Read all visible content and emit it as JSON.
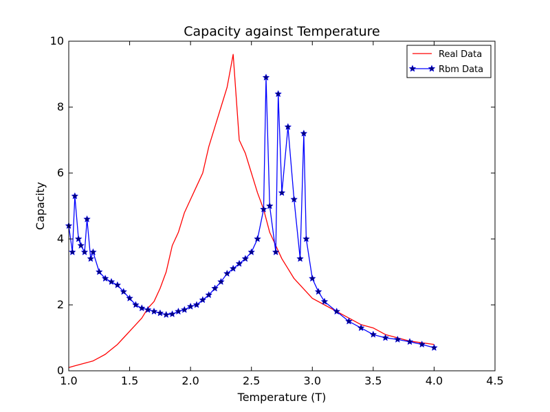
{
  "chart_data": {
    "type": "line",
    "title": "Capacity against Temperature",
    "xlabel": "Temperature (T)",
    "ylabel": "Capacity",
    "xlim": [
      1.0,
      4.5
    ],
    "ylim": [
      0,
      10
    ],
    "xticks": [
      "1.0",
      "1.5",
      "2.0",
      "2.5",
      "3.0",
      "3.5",
      "4.0",
      "4.5"
    ],
    "yticks": [
      "0",
      "2",
      "4",
      "6",
      "8",
      "10"
    ],
    "grid": false,
    "legend_position": "top-right",
    "series": [
      {
        "name": "Real Data",
        "color": "#ff0000",
        "marker": "none",
        "x": [
          1.0,
          1.05,
          1.1,
          1.15,
          1.2,
          1.25,
          1.3,
          1.35,
          1.4,
          1.45,
          1.5,
          1.55,
          1.6,
          1.65,
          1.7,
          1.75,
          1.8,
          1.85,
          1.9,
          1.95,
          2.0,
          2.05,
          2.1,
          2.15,
          2.2,
          2.25,
          2.3,
          2.35,
          2.4,
          2.45,
          2.5,
          2.55,
          2.6,
          2.65,
          2.7,
          2.75,
          2.8,
          2.85,
          2.9,
          2.95,
          3.0,
          3.1,
          3.2,
          3.3,
          3.4,
          3.5,
          3.6,
          3.7,
          3.8,
          3.9,
          4.0
        ],
        "y": [
          0.1,
          0.15,
          0.2,
          0.25,
          0.3,
          0.4,
          0.5,
          0.65,
          0.8,
          1.0,
          1.2,
          1.4,
          1.6,
          1.9,
          2.1,
          2.5,
          3.0,
          3.8,
          4.2,
          4.8,
          5.2,
          5.6,
          6.0,
          6.8,
          7.4,
          8.0,
          8.6,
          9.6,
          7.0,
          6.6,
          6.0,
          5.4,
          4.9,
          4.2,
          3.8,
          3.4,
          3.1,
          2.8,
          2.6,
          2.4,
          2.2,
          2.0,
          1.8,
          1.6,
          1.4,
          1.3,
          1.1,
          1.0,
          0.9,
          0.85,
          0.8
        ]
      },
      {
        "name": "Rbm Data",
        "color": "#0000ff",
        "marker": "star",
        "x": [
          1.0,
          1.03,
          1.05,
          1.08,
          1.1,
          1.13,
          1.15,
          1.18,
          1.2,
          1.25,
          1.3,
          1.35,
          1.4,
          1.45,
          1.5,
          1.55,
          1.6,
          1.65,
          1.7,
          1.75,
          1.8,
          1.85,
          1.9,
          1.95,
          2.0,
          2.05,
          2.1,
          2.15,
          2.2,
          2.25,
          2.3,
          2.35,
          2.4,
          2.45,
          2.5,
          2.55,
          2.6,
          2.62,
          2.65,
          2.7,
          2.72,
          2.75,
          2.8,
          2.85,
          2.9,
          2.93,
          2.95,
          3.0,
          3.05,
          3.1,
          3.2,
          3.3,
          3.4,
          3.5,
          3.6,
          3.7,
          3.8,
          3.9,
          4.0
        ],
        "y": [
          4.4,
          3.6,
          5.3,
          4.0,
          3.8,
          3.6,
          4.6,
          3.4,
          3.6,
          3.0,
          2.8,
          2.7,
          2.6,
          2.4,
          2.2,
          2.0,
          1.9,
          1.85,
          1.8,
          1.75,
          1.7,
          1.72,
          1.8,
          1.85,
          1.95,
          2.0,
          2.15,
          2.3,
          2.5,
          2.7,
          2.95,
          3.1,
          3.25,
          3.4,
          3.6,
          4.0,
          4.9,
          8.9,
          5.0,
          3.6,
          8.4,
          5.4,
          7.4,
          5.2,
          3.4,
          7.2,
          4.0,
          2.8,
          2.4,
          2.1,
          1.8,
          1.5,
          1.3,
          1.1,
          1.0,
          0.95,
          0.88,
          0.8,
          0.7
        ]
      }
    ]
  }
}
